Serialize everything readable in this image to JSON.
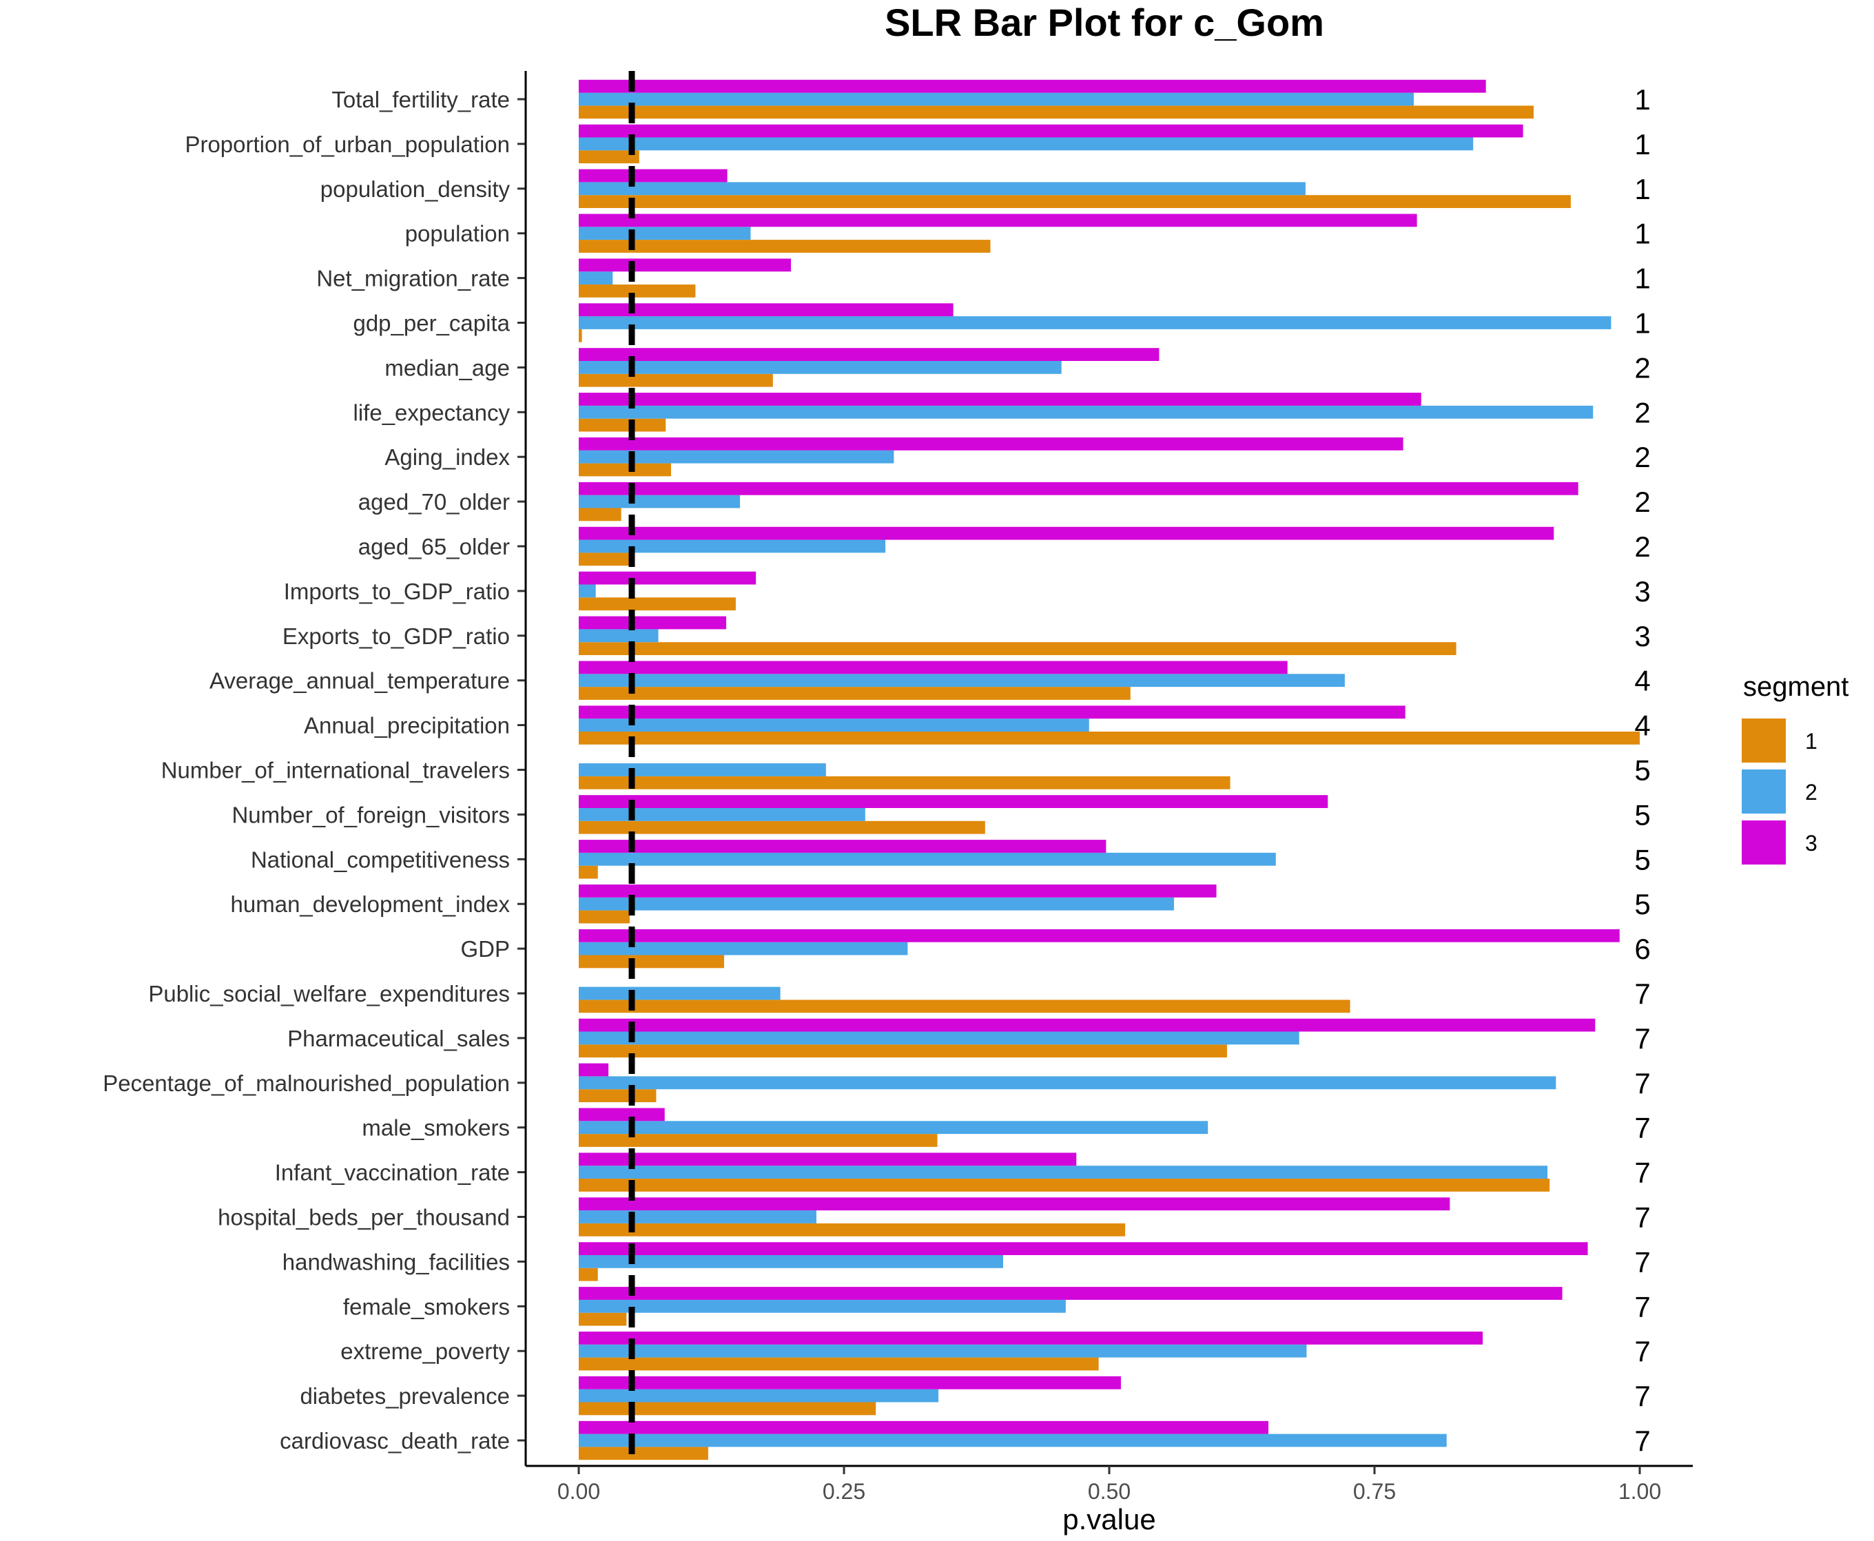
{
  "chart_data": {
    "type": "bar",
    "orientation": "horizontal",
    "title": "SLR Bar Plot for c_Gom",
    "xlabel": "p.value",
    "ylabel": "",
    "xlim": [
      0,
      1
    ],
    "x_ticks": [
      "0.00",
      "0.25",
      "0.50",
      "0.75",
      "1.00"
    ],
    "x_tick_values": [
      0,
      0.25,
      0.5,
      0.75,
      1.0
    ],
    "reference_line": 0.05,
    "legend": {
      "title": "segment",
      "position": "right"
    },
    "grid": false,
    "categories": [
      "Total_fertility_rate",
      "Proportion_of_urban_population",
      "population_density",
      "population",
      "Net_migration_rate",
      "gdp_per_capita",
      "median_age",
      "life_expectancy",
      "Aging_index",
      "aged_70_older",
      "aged_65_older",
      "Imports_to_GDP_ratio",
      "Exports_to_GDP_ratio",
      "Average_annual_temperature",
      "Annual_precipitation",
      "Number_of_international_travelers",
      "Number_of_foreign_visitors",
      "National_competitiveness",
      "human_development_index",
      "GDP",
      "Public_social_welfare_expenditures",
      "Pharmaceutical_sales",
      "Pecentage_of_malnourished_population",
      "male_smokers",
      "Infant_vaccination_rate",
      "hospital_beds_per_thousand",
      "handwashing_facilities",
      "female_smokers",
      "extreme_poverty",
      "diabetes_prevalence",
      "cardiovasc_death_rate"
    ],
    "group_labels": [
      "1",
      "1",
      "1",
      "1",
      "1",
      "1",
      "2",
      "2",
      "2",
      "2",
      "2",
      "3",
      "3",
      "4",
      "4",
      "5",
      "5",
      "5",
      "5",
      "6",
      "7",
      "7",
      "7",
      "7",
      "7",
      "7",
      "7",
      "7",
      "7",
      "7",
      "7"
    ],
    "series": [
      {
        "name": "1",
        "color": "#E08A0B",
        "values": [
          0.9,
          0.057,
          0.935,
          0.388,
          0.11,
          0.003,
          0.183,
          0.082,
          0.087,
          0.04,
          0.05,
          0.148,
          0.827,
          0.52,
          1.0,
          0.614,
          0.383,
          0.018,
          0.048,
          0.137,
          0.727,
          0.611,
          0.073,
          0.338,
          0.915,
          0.515,
          0.018,
          0.045,
          0.49,
          0.28,
          0.122
        ]
      },
      {
        "name": "2",
        "color": "#4BA7E7",
        "values": [
          0.787,
          0.843,
          0.685,
          0.162,
          0.032,
          0.973,
          0.455,
          0.956,
          0.297,
          0.152,
          0.289,
          0.016,
          0.075,
          0.722,
          0.481,
          0.233,
          0.27,
          0.657,
          0.561,
          0.31,
          0.19,
          0.679,
          0.921,
          0.593,
          0.913,
          0.224,
          0.4,
          0.459,
          0.686,
          0.339,
          0.818
        ]
      },
      {
        "name": "3",
        "color": "#D306DA",
        "values": [
          0.855,
          0.89,
          0.14,
          0.79,
          0.2,
          0.353,
          0.547,
          0.794,
          0.777,
          0.942,
          0.919,
          0.167,
          0.139,
          0.668,
          0.779,
          null,
          0.706,
          0.497,
          0.601,
          0.981,
          null,
          0.958,
          0.028,
          0.081,
          0.469,
          0.821,
          0.951,
          0.927,
          0.852,
          0.511,
          0.65
        ]
      }
    ]
  }
}
